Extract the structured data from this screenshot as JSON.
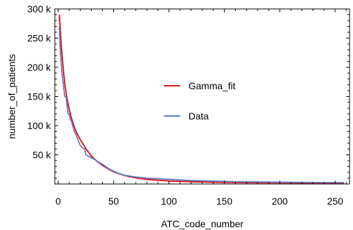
{
  "chart_data": {
    "type": "line",
    "xlabel": "ATC_code_number",
    "ylabel": "number_of_patients",
    "xlim": [
      -3,
      263
    ],
    "ylim": [
      0,
      300000
    ],
    "x_ticks": [
      {
        "value": 0,
        "label": "0"
      },
      {
        "value": 50,
        "label": "50"
      },
      {
        "value": 100,
        "label": "100"
      },
      {
        "value": 150,
        "label": "150"
      },
      {
        "value": 200,
        "label": "200"
      },
      {
        "value": 250,
        "label": "250"
      }
    ],
    "y_ticks": [
      {
        "value": 50000,
        "label": "50 k"
      },
      {
        "value": 100000,
        "label": "100 k"
      },
      {
        "value": 150000,
        "label": "150 k"
      },
      {
        "value": 200000,
        "label": "200 k"
      },
      {
        "value": 250000,
        "label": "250 k"
      },
      {
        "value": 300000,
        "label": "300 k"
      }
    ],
    "legend": {
      "placement": "center"
    },
    "series": [
      {
        "name": "Gamma_fit",
        "color": "#e8141d",
        "x": [
          1,
          2,
          3,
          4,
          5,
          6,
          7,
          8,
          10,
          12,
          14,
          16,
          18,
          20,
          23,
          26,
          30,
          35,
          40,
          45,
          50,
          55,
          60,
          70,
          80,
          90,
          100,
          120,
          140,
          160,
          180,
          200,
          220,
          240,
          258
        ],
        "y": [
          290000,
          262000,
          232000,
          210000,
          190000,
          172000,
          158000,
          146000,
          128000,
          113000,
          101000,
          91000,
          83000,
          76000,
          67000,
          58000,
          48000,
          39000,
          32000,
          26000,
          21000,
          17500,
          14500,
          10500,
          8000,
          6500,
          5200,
          3800,
          3000,
          2500,
          2200,
          2000,
          1800,
          1700,
          1600
        ]
      },
      {
        "name": "Data",
        "color": "#5a7fc8",
        "x": [
          1,
          2,
          3,
          4,
          5,
          6,
          7,
          8,
          9,
          10,
          11,
          12,
          13,
          14,
          15,
          16,
          17,
          18,
          19,
          20,
          22,
          24,
          25,
          27,
          30,
          33,
          36,
          40,
          45,
          50,
          55,
          60,
          70,
          80,
          90,
          100,
          110,
          120,
          140,
          160,
          180,
          200,
          220,
          240,
          258
        ],
        "y": [
          270000,
          225000,
          200000,
          180000,
          165000,
          150000,
          150000,
          135000,
          120000,
          120000,
          110000,
          108000,
          100000,
          94000,
          88000,
          86000,
          80000,
          76000,
          70000,
          66000,
          62000,
          60000,
          50000,
          48000,
          45000,
          42000,
          38000,
          34000,
          27000,
          22000,
          18000,
          15000,
          12000,
          10000,
          9000,
          8000,
          7000,
          6000,
          5000,
          4000,
          3500,
          3000,
          2800,
          2500,
          2400
        ]
      }
    ]
  }
}
